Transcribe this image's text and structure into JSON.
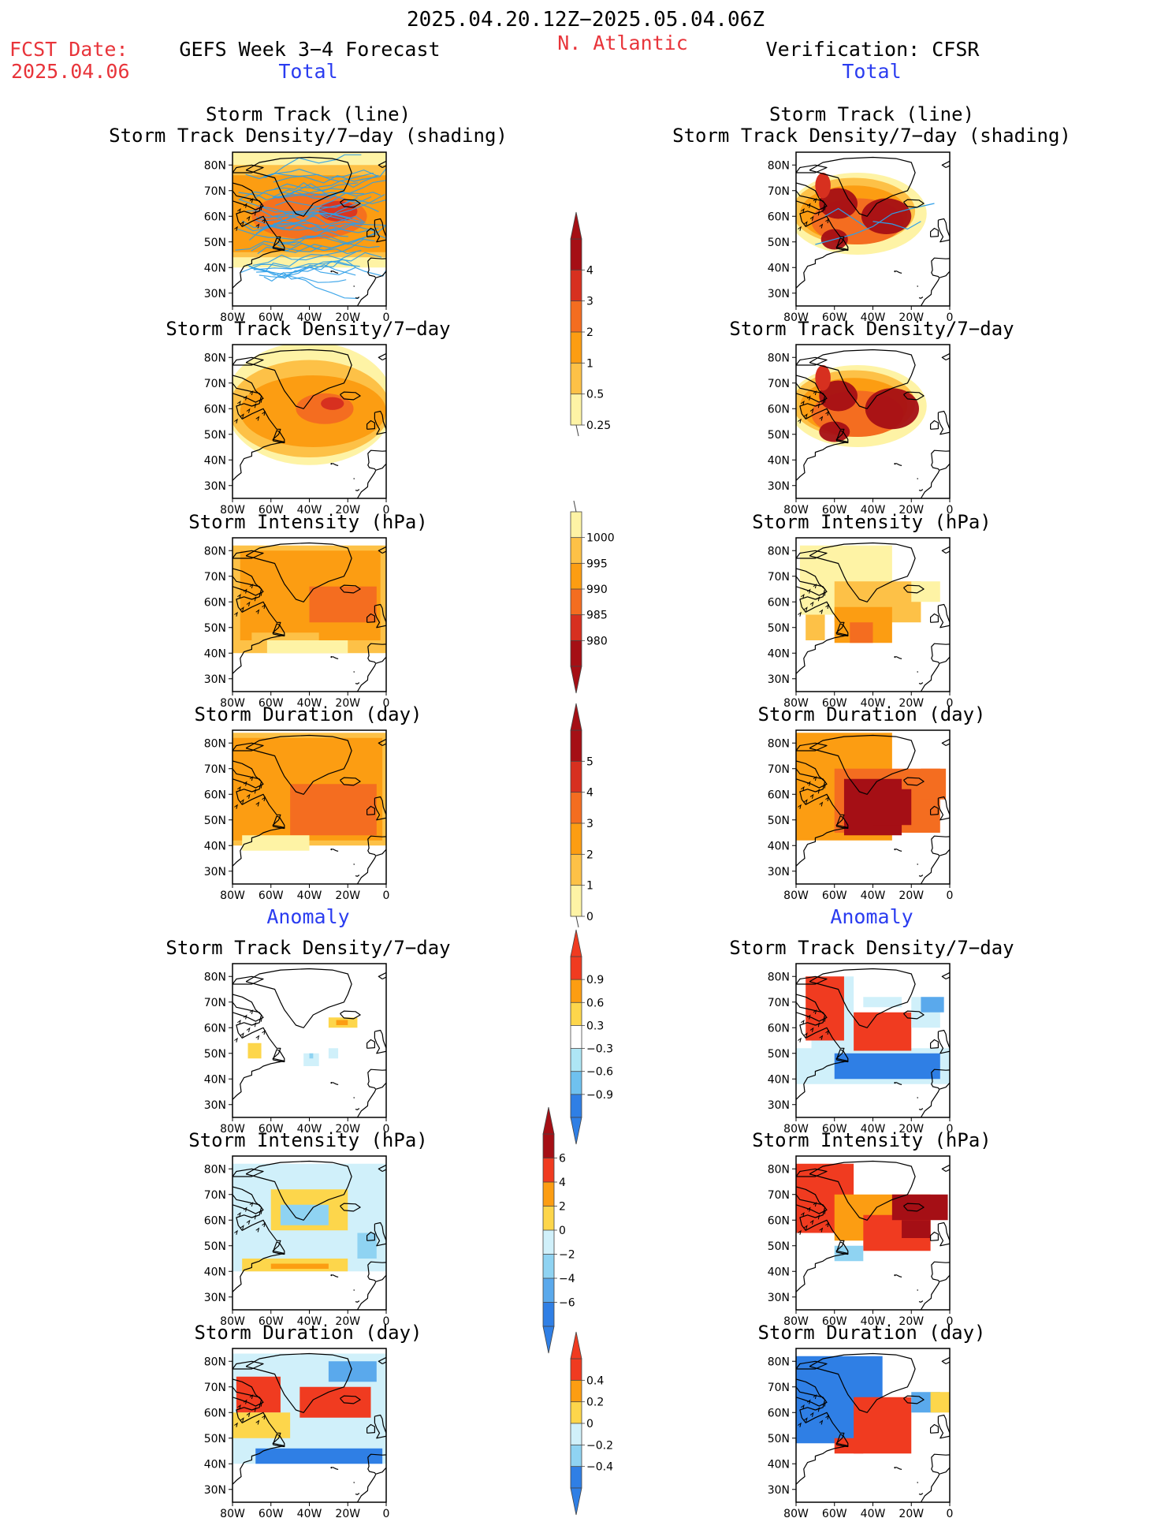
{
  "header": {
    "period": "2025.04.20.12Z−2025.05.04.06Z",
    "fcst_label": "FCST Date:",
    "fcst_date": "2025.04.06",
    "model": "GEFS Week 3−4 Forecast",
    "region": "N. Atlantic",
    "verification": "Verification: CFSR",
    "total_left": "Total",
    "total_right": "Total",
    "anomaly_left": "Anomaly",
    "anomaly_right": "Anomaly"
  },
  "axes": {
    "lon_ticks": [
      "80W",
      "60W",
      "40W",
      "20W",
      "0"
    ],
    "lat_ticks": [
      "80N",
      "70N",
      "60N",
      "50N",
      "40N",
      "30N"
    ]
  },
  "titles": {
    "track_line": "Storm Track (line)\nStorm Track Density/7−day (shading)",
    "density": "Storm Track Density/7−day",
    "intensity": "Storm Intensity (hPa)",
    "duration": "Storm Duration (day)"
  },
  "colorbars": {
    "density": {
      "labels": [
        "4",
        "3",
        "2",
        "1",
        "0.5",
        "0.25"
      ],
      "colors": [
        "#a50f15",
        "#d7301f",
        "#f46d20",
        "#fc9d12",
        "#fdc147",
        "#fef3a5"
      ]
    },
    "intensity": {
      "labels": [
        "1000",
        "995",
        "990",
        "985",
        "980"
      ],
      "colors": [
        "#fef3a5",
        "#fdc147",
        "#fc9d12",
        "#f46d20",
        "#d7301f",
        "#a50f15"
      ]
    },
    "duration": {
      "labels": [
        "5",
        "4",
        "3",
        "2",
        "1",
        "0"
      ],
      "colors": [
        "#a50f15",
        "#d7301f",
        "#f46d20",
        "#fc9d12",
        "#fdc147",
        "#fef3a5"
      ]
    },
    "anom_density": {
      "labels": [
        "0.9",
        "0.6",
        "0.3",
        "−0.3",
        "−0.6",
        "−0.9"
      ],
      "colors": [
        "#f03b20",
        "#fc9d12",
        "#fdd64b",
        "#ffffff",
        "#aee6f5",
        "#6fc1ef",
        "#2f7fe5"
      ]
    },
    "anom_intensity": {
      "labels": [
        "6",
        "4",
        "2",
        "0",
        "−2",
        "−4",
        "−6"
      ],
      "colors": [
        "#a50f15",
        "#f03b20",
        "#fc9d12",
        "#fdd64b",
        "#d0f0fa",
        "#8fd3f2",
        "#5aa9ec",
        "#2f7fe5"
      ]
    },
    "anom_duration": {
      "labels": [
        "0.4",
        "0.2",
        "0",
        "−0.2",
        "−0.4"
      ],
      "colors": [
        "#f03b20",
        "#fc9d12",
        "#fdd64b",
        "#d0f0fa",
        "#8fd3f2",
        "#2f7fe5"
      ]
    }
  }
}
